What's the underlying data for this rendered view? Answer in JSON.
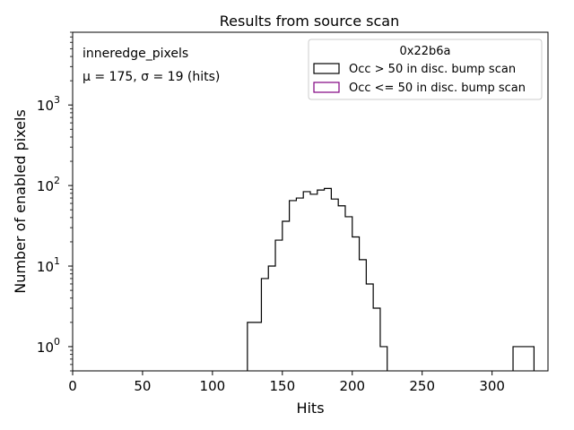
{
  "chart_data": {
    "type": "histogram",
    "title": "Results from source scan",
    "xlabel": "Hits",
    "ylabel": "Number of enabled pixels",
    "xlim": [
      0,
      340
    ],
    "ylim": [
      0.5,
      8000
    ],
    "yscale": "log",
    "xticks": [
      "0",
      "50",
      "100",
      "150",
      "200",
      "250",
      "300"
    ],
    "yticks": [
      {
        "base": "10",
        "exp": "0",
        "value": 1
      },
      {
        "base": "10",
        "exp": "1",
        "value": 10
      },
      {
        "base": "10",
        "exp": "2",
        "value": 100
      },
      {
        "base": "10",
        "exp": "3",
        "value": 1000
      }
    ],
    "annotation": {
      "line1": "inneredge_pixels",
      "line2": "μ = 175, σ = 19 (hits)"
    },
    "legend": {
      "title": "0x22b6a",
      "placement": "top-right",
      "entries": [
        {
          "label": "Occ > 50 in disc. bump scan",
          "color": "#000000"
        },
        {
          "label": "Occ <= 50 in disc. bump scan",
          "color": "#800080"
        }
      ]
    },
    "series": [
      {
        "name": "Occ > 50 in disc. bump scan",
        "color": "#000000",
        "bin_width": 5,
        "bins": [
          {
            "x": 125,
            "count": 2
          },
          {
            "x": 130,
            "count": 2
          },
          {
            "x": 135,
            "count": 7
          },
          {
            "x": 140,
            "count": 10
          },
          {
            "x": 145,
            "count": 21
          },
          {
            "x": 150,
            "count": 36
          },
          {
            "x": 155,
            "count": 65
          },
          {
            "x": 160,
            "count": 70
          },
          {
            "x": 165,
            "count": 84
          },
          {
            "x": 170,
            "count": 78
          },
          {
            "x": 175,
            "count": 88
          },
          {
            "x": 180,
            "count": 92
          },
          {
            "x": 185,
            "count": 68
          },
          {
            "x": 190,
            "count": 56
          },
          {
            "x": 195,
            "count": 41
          },
          {
            "x": 200,
            "count": 23
          },
          {
            "x": 205,
            "count": 12
          },
          {
            "x": 210,
            "count": 6
          },
          {
            "x": 215,
            "count": 3
          },
          {
            "x": 220,
            "count": 1
          },
          {
            "x": 315,
            "count": 1
          },
          {
            "x": 320,
            "count": 1
          },
          {
            "x": 325,
            "count": 1
          }
        ]
      },
      {
        "name": "Occ <= 50 in disc. bump scan",
        "color": "#800080",
        "bin_width": 5,
        "bins": []
      }
    ]
  }
}
